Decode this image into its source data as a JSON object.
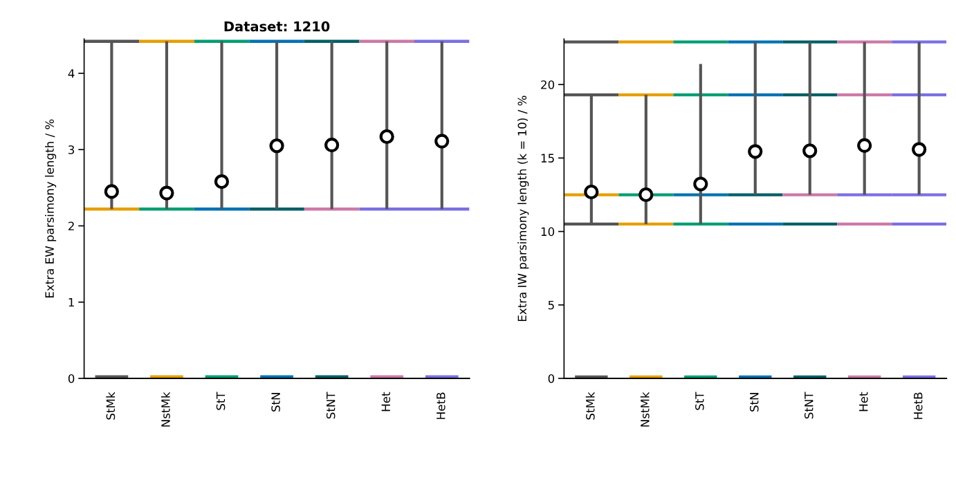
{
  "chart_data": [
    {
      "type": "scatter",
      "title": "Dataset: 1210",
      "ylabel": "Extra EW parsimony length / %",
      "categories": [
        "StMk",
        "NstMk",
        "StT",
        "StN",
        "StNT",
        "Het",
        "HetB"
      ],
      "ylim": [
        0,
        4.45
      ],
      "yticks": [
        0,
        1,
        2,
        3,
        4
      ],
      "series": [
        {
          "type": "bar",
          "colors": [
            "#555555",
            "#e69f00",
            "#009e73",
            "#0072b2",
            "#005f66",
            "#cc79a7",
            "#7b6fe3"
          ],
          "base": [
            4.4,
            4.4,
            4.4,
            4.4,
            4.4,
            4.4,
            4.4
          ],
          "values": [
            0.04,
            0.04,
            0.04,
            0.04,
            0.04,
            0.04,
            0.04
          ]
        },
        {
          "type": "bar",
          "colors": [
            "#e69f00",
            "#009e73",
            "#0072b2",
            "#005f66",
            "#cc79a7",
            "#7b6fe3",
            "#7b6fe3"
          ],
          "base": [
            2.2,
            2.2,
            2.2,
            2.2,
            2.2,
            2.2,
            2.2
          ],
          "values": [
            0.04,
            0.04,
            0.04,
            0.04,
            0.04,
            0.04,
            0.04
          ]
        },
        {
          "type": "bar",
          "colors": [
            "#555555",
            "#e69f00",
            "#009e73",
            "#0072b2",
            "#005f66",
            "#cc79a7",
            "#7b6fe3"
          ],
          "values": [
            0.04,
            0.04,
            0.04,
            0.04,
            0.04,
            0.04,
            0.04
          ]
        },
        {
          "marker": "circle",
          "color": "#000000",
          "values": [
            2.45,
            2.43,
            2.58,
            3.05,
            3.06,
            3.17,
            3.11
          ],
          "errors": [
            [
              2.22,
              4.42
            ],
            [
              2.22,
              4.42
            ],
            [
              2.22,
              4.42
            ],
            [
              2.22,
              4.42
            ],
            [
              2.22,
              4.42
            ],
            [
              2.22,
              4.42
            ],
            [
              2.22,
              4.42
            ]
          ]
        }
      ]
    },
    {
      "type": "scatter",
      "ylabel": "Extra IW parsimony length (k = 10) / %",
      "categories": [
        "StMk",
        "NstMk",
        "StT",
        "StN",
        "StNT",
        "Het",
        "HetB"
      ],
      "ylim": [
        0,
        23.1
      ],
      "yticks": [
        0,
        5,
        10,
        15,
        20
      ],
      "series": [
        {
          "type": "bar",
          "colors": [
            "#555555",
            "#e69f00",
            "#009e73",
            "#0072b2",
            "#005f66",
            "#cc79a7",
            "#7b6fe3"
          ],
          "base": [
            22.8,
            22.8,
            22.8,
            22.8,
            22.8,
            22.8,
            22.8
          ],
          "values": [
            0.2,
            0.2,
            0.2,
            0.2,
            0.2,
            0.2,
            0.2
          ]
        },
        {
          "type": "bar",
          "colors": [
            "#555555",
            "#e69f00",
            "#009e73",
            "#0072b2",
            "#005f66",
            "#cc79a7",
            "#7b6fe3"
          ],
          "base": [
            19.2,
            19.2,
            19.2,
            19.2,
            19.2,
            19.2,
            19.2
          ],
          "values": [
            0.2,
            0.2,
            0.2,
            0.2,
            0.2,
            0.2,
            0.2
          ]
        },
        {
          "type": "bar",
          "colors": [
            "#e69f00",
            "#009e73",
            "#0072b2",
            "#005f66",
            "#cc79a7",
            "#7b6fe3",
            "#7b6fe3"
          ],
          "base": [
            12.4,
            12.4,
            12.4,
            12.4,
            12.4,
            12.4,
            12.4
          ],
          "values": [
            0.2,
            0.2,
            0.2,
            0.2,
            0.2,
            0.2,
            0.2
          ]
        },
        {
          "type": "bar",
          "colors": [
            "#555555",
            "#e69f00",
            "#009e73",
            "#0072b2",
            "#005f66",
            "#cc79a7",
            "#7b6fe3"
          ],
          "base": [
            10.4,
            10.4,
            10.4,
            10.4,
            10.4,
            10.4,
            10.4
          ],
          "values": [
            0.2,
            0.2,
            0.2,
            0.2,
            0.2,
            0.2,
            0.2
          ]
        },
        {
          "type": "bar",
          "colors": [
            "#555555",
            "#e69f00",
            "#009e73",
            "#0072b2",
            "#005f66",
            "#cc79a7",
            "#7b6fe3"
          ],
          "values": [
            0.2,
            0.2,
            0.2,
            0.2,
            0.2,
            0.2,
            0.2
          ]
        },
        {
          "marker": "circle",
          "color": "#000000",
          "values": [
            12.69,
            12.5,
            13.23,
            15.44,
            15.49,
            15.85,
            15.58
          ],
          "errors": [
            [
              10.5,
              19.3
            ],
            [
              10.5,
              19.3
            ],
            [
              10.5,
              21.4
            ],
            [
              12.5,
              22.9
            ],
            [
              12.5,
              22.9
            ],
            [
              12.5,
              22.9
            ],
            [
              12.5,
              22.9
            ]
          ]
        }
      ]
    }
  ]
}
